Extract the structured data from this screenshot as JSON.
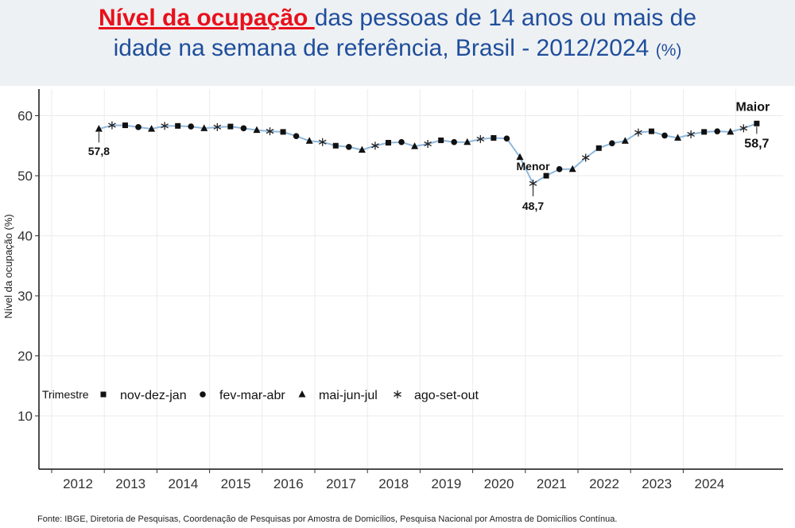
{
  "title": {
    "highlight": "Nível da ocupação ",
    "line1_rest": "das pessoas de 14 anos ou mais de",
    "line2": "idade na semana de referência, Brasil - 2012/2024",
    "unit": "(%)"
  },
  "source": "Fonte: IBGE, Diretoria de Pesquisas, Coordenação de Pesquisas por Amostra de Domicílios, Pesquisa Nacional por Amostra de Domicílios Contínua.",
  "colors": {
    "title": "#1f4e9c",
    "highlight": "#e8101b",
    "line": "#8fb8dc",
    "header_bg": "#eef1f3"
  },
  "chart_data": {
    "type": "line",
    "ylabel": "Nível da ocupação (%)",
    "xlabel": "",
    "ylim": [
      0,
      62
    ],
    "yticks": [
      10,
      20,
      30,
      40,
      50,
      60
    ],
    "grid": true,
    "years": [
      "2012",
      "2013",
      "2014",
      "2015",
      "2016",
      "2017",
      "2018",
      "2019",
      "2020",
      "2021",
      "2022",
      "2023",
      "2024"
    ],
    "start_quarter_index": 2,
    "legend": {
      "title": "Trimestre",
      "position": "bottom-left",
      "items": [
        {
          "marker": "square",
          "label": "nov-dez-jan"
        },
        {
          "marker": "circle",
          "label": "fev-mar-abr"
        },
        {
          "marker": "triangle",
          "label": "mai-jun-jul"
        },
        {
          "marker": "asterisk",
          "label": "ago-set-out"
        }
      ]
    },
    "values": [
      57.8,
      58.4,
      58.4,
      58.1,
      57.8,
      58.3,
      58.3,
      58.2,
      57.9,
      58.1,
      58.2,
      57.9,
      57.6,
      57.4,
      57.3,
      56.6,
      55.8,
      55.6,
      55.0,
      54.8,
      54.3,
      55.0,
      55.5,
      55.6,
      54.9,
      55.3,
      55.9,
      55.6,
      55.6,
      56.1,
      56.3,
      56.2,
      53.1,
      48.7,
      50.0,
      51.1,
      51.1,
      53.0,
      54.6,
      55.4,
      55.8,
      57.2,
      57.4,
      56.7,
      56.3,
      56.9,
      57.3,
      57.4,
      57.3,
      57.9,
      58.7
    ],
    "annotations": [
      {
        "label": "57,8",
        "index": 0
      },
      {
        "title": "Menor",
        "label": "48,7",
        "index": 33
      },
      {
        "title": "Maior",
        "label": "58,7",
        "index": 50
      }
    ]
  }
}
